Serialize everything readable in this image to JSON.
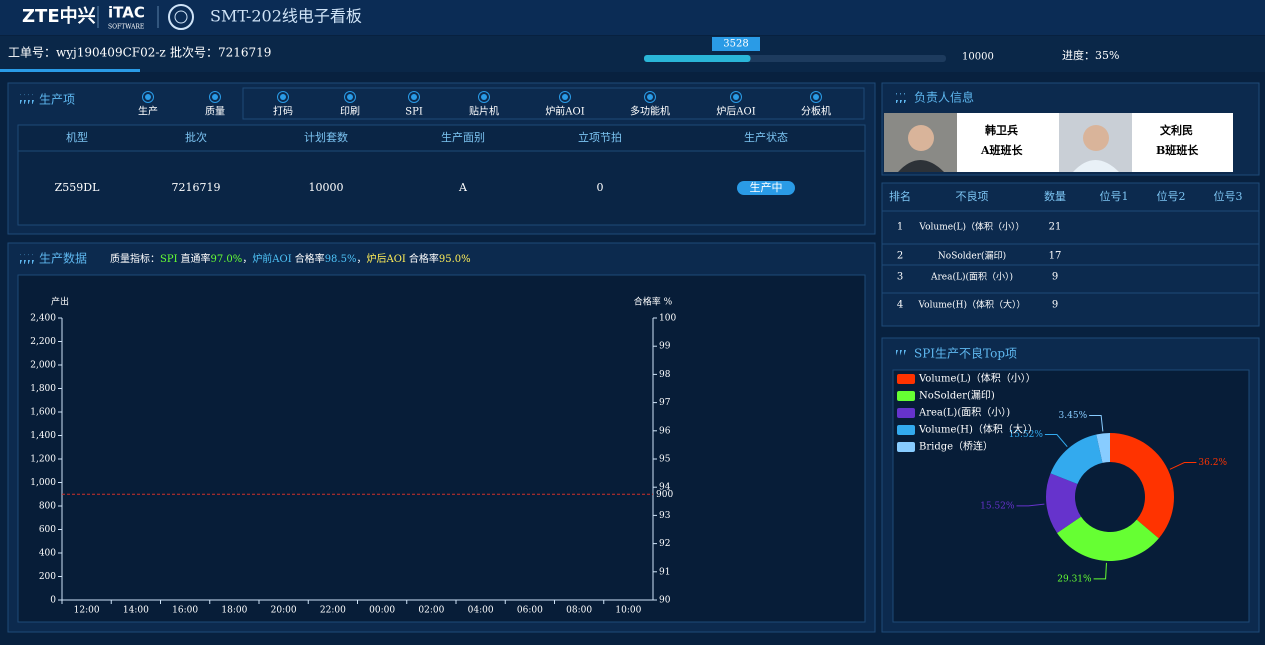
{
  "header": {
    "logo_zte": "ZTE中兴",
    "logo_itac": "iTAC",
    "logo_itac_sub": "SOFTWARE",
    "title": "SMT-202线电子看板"
  },
  "order": {
    "work_order": "工单号：wyj190409CF02-z",
    "batch": "批次号：7216719"
  },
  "progress": {
    "current": 3528,
    "target": 10000,
    "label": "进度：35%"
  },
  "production_items": {
    "title": "生产项",
    "modes": [
      "生产",
      "质量"
    ],
    "steps": [
      "打码",
      "印刷",
      "SPI",
      "贴片机",
      "炉前AOI",
      "多功能机",
      "炉后AOI",
      "分板机"
    ]
  },
  "production_table": {
    "headers": [
      "机型",
      "批次",
      "计划套数",
      "生产面别",
      "立项节拍",
      "生产状态"
    ],
    "rows": [
      [
        "Z559DL",
        7216719,
        10000,
        "A",
        0,
        "生产中"
      ]
    ]
  },
  "production_data": {
    "title": "生产数据"
  },
  "quality": {
    "prefix": "质量指标：",
    "separator": "，",
    "items": [
      {
        "station": "SPI",
        "metric": "直通率",
        "value": "97.0%",
        "color": "#66ff33"
      },
      {
        "station": "炉前AOI",
        "metric": "合格率",
        "value": "98.5%",
        "color": "#4fc3f7"
      },
      {
        "station": "炉后AOI",
        "metric": "合格率",
        "value": "95.0%",
        "color": "#ffee58"
      }
    ]
  },
  "production_chart": {
    "type": "bar",
    "y_label": "产出",
    "y2_label": "合格率 %",
    "categories": [
      "12:00",
      "14:00",
      "16:00",
      "18:00",
      "20:00",
      "22:00",
      "00:00",
      "02:00",
      "04:00",
      "06:00",
      "08:00",
      "10:00"
    ],
    "ylim": [
      0,
      2400
    ],
    "yticks": [
      0,
      200,
      400,
      600,
      800,
      {
        "value": 1000,
        "label": "1,000"
      },
      {
        "value": 1200,
        "label": "1,200"
      },
      {
        "value": 1400,
        "label": "1,400"
      },
      {
        "value": 1600,
        "label": "1,600"
      },
      {
        "value": 1800,
        "label": "1,800"
      },
      {
        "value": 2000,
        "label": "2,000"
      },
      {
        "value": 2200,
        "label": "2,200"
      },
      {
        "value": 2400,
        "label": "2,400"
      }
    ],
    "y2lim": [
      90,
      100
    ],
    "y2ticks": [
      90,
      91,
      92,
      93,
      94,
      95,
      96,
      97,
      98,
      99,
      100
    ],
    "target_line": 900,
    "target_color": "#d0302a"
  },
  "responsible": {
    "title": "负责人信息",
    "people": [
      {
        "name": "韩卫兵",
        "role": "A班班长"
      },
      {
        "name": "文利民",
        "role": "B班班长"
      }
    ]
  },
  "defect_table": {
    "headers": [
      "排名",
      "不良项",
      "数量",
      "位号1",
      "位号2",
      "位号3"
    ],
    "rows": [
      [
        1,
        "Volume(L)（体积（小））",
        21
      ],
      [
        2,
        "NoSolder(漏印)",
        17
      ],
      [
        3,
        "Area(L)(面积（小）)",
        9
      ],
      [
        4,
        "Volume(H)（体积（大））",
        9
      ]
    ]
  },
  "defect_pie": {
    "type": "pie",
    "title": "SPI生产不良Top项",
    "categories": [
      "Volume(L)（体积（小））",
      "NoSolder(漏印)",
      "Area(L)(面积（小）)",
      "Volume(H)（体积（大））",
      "Bridge（桥连）"
    ],
    "values": [
      36.2,
      29.31,
      15.52,
      15.52,
      3.45
    ],
    "value_labels": [
      "36.2%",
      "29.31%",
      "15.52%",
      "15.52%",
      "3.45%"
    ],
    "colors": [
      "#ff3300",
      "#66ff33",
      "#6633cc",
      "#33aaee",
      "#88ccff"
    ]
  }
}
